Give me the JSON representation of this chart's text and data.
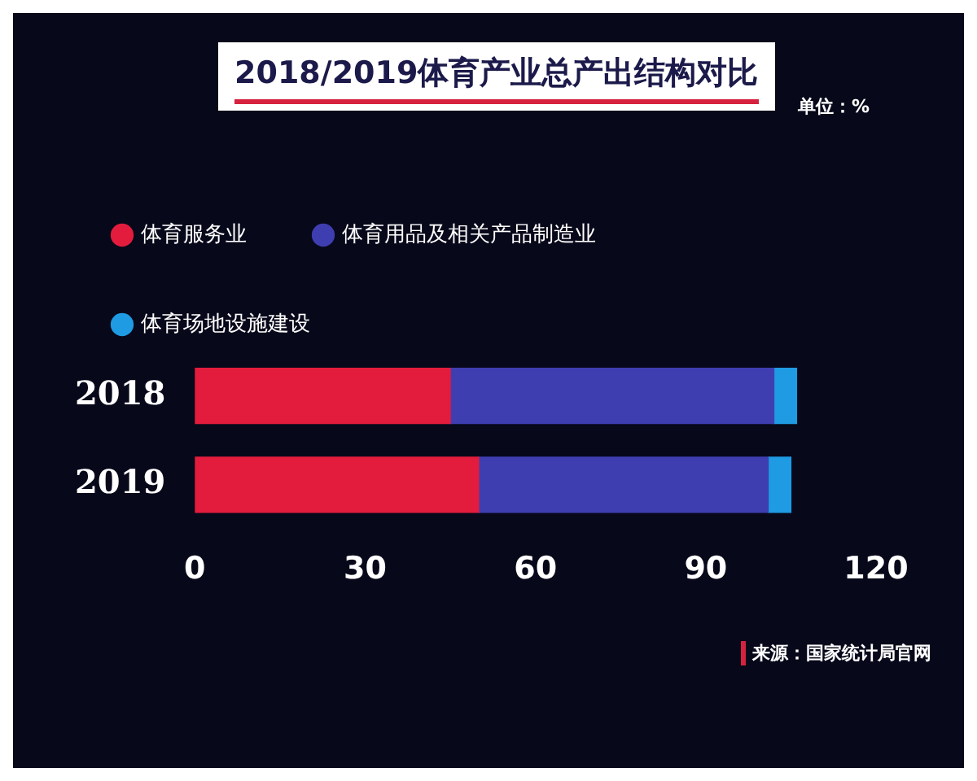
{
  "chart_data": {
    "type": "bar",
    "title": "2018/2019体育产业总产出结构对比",
    "orientation": "horizontal",
    "stacked": true,
    "legend": "top left",
    "categories": [
      "2018",
      "2019"
    ],
    "series": [
      {
        "name": "体育服务业",
        "color": "#e31c3d",
        "values": [
          45,
          50
        ]
      },
      {
        "name": "体育用品及相关产品制造业",
        "color": "#3f3eb0",
        "values": [
          57,
          51
        ]
      },
      {
        "name": "体育场地设施建设",
        "color": "#1e9be3",
        "values": [
          4,
          4
        ]
      }
    ],
    "xlim": [
      0,
      120
    ],
    "xticks": [
      0,
      30,
      60,
      90,
      120
    ],
    "annotations": [
      "单位：%",
      "来源：国家统计局官网"
    ]
  }
}
